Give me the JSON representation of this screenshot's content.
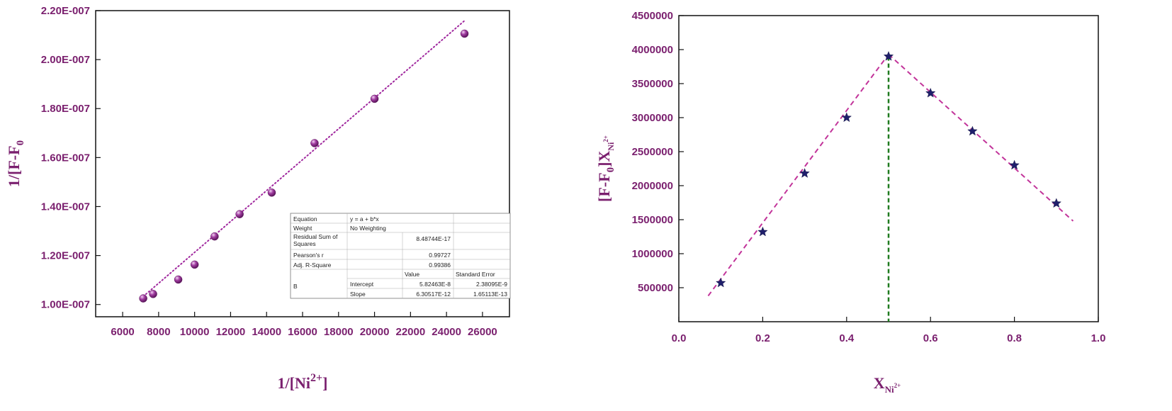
{
  "colors": {
    "text": "#7a1f6e",
    "axis": "#111111",
    "left_marker": "#8e2a8e",
    "left_fit": "#a0289e",
    "right_marker": "#1f1f6b",
    "right_fit": "#c2349a",
    "right_vline": "#1f7a1f"
  },
  "chart_data": [
    {
      "type": "scatter",
      "title": "",
      "xlabel": {
        "main": "1/[Ni",
        "sup": "2+",
        "end": "]"
      },
      "ylabel": {
        "main": "1/[F-F",
        "sub": "0"
      },
      "xlim": [
        4500,
        27500
      ],
      "ylim": [
        9.5e-08,
        2.2e-07
      ],
      "xticks": [
        6000,
        8000,
        10000,
        12000,
        14000,
        16000,
        18000,
        20000,
        22000,
        24000,
        26000
      ],
      "xtick_labels": [
        "6000",
        "8000",
        "10000",
        "12000",
        "14000",
        "16000",
        "18000",
        "20000",
        "22000",
        "24000",
        "26000"
      ],
      "yticks": [
        1e-07,
        1.2e-07,
        1.4e-07,
        1.6e-07,
        1.8e-07,
        2e-07,
        2.2e-07
      ],
      "ytick_labels": [
        "1.00E-007",
        "1.20E-007",
        "1.40E-007",
        "1.60E-007",
        "1.80E-007",
        "2.00E-007",
        "2.20E-007"
      ],
      "grid": false,
      "marker": "sphere",
      "points": [
        {
          "x": 7143,
          "y": 1.025e-07
        },
        {
          "x": 7692,
          "y": 1.043e-07
        },
        {
          "x": 9091,
          "y": 1.102e-07
        },
        {
          "x": 10000,
          "y": 1.163e-07
        },
        {
          "x": 11111,
          "y": 1.278e-07
        },
        {
          "x": 12500,
          "y": 1.369e-07
        },
        {
          "x": 14286,
          "y": 1.457e-07
        },
        {
          "x": 16667,
          "y": 1.659e-07
        },
        {
          "x": 20000,
          "y": 1.84e-07
        },
        {
          "x": 25000,
          "y": 2.106e-07
        }
      ],
      "fit": {
        "style": "dotted",
        "intercept": 5.82463e-08,
        "slope": 6.30517e-12,
        "x_range": [
          7143,
          25000
        ]
      },
      "fit_table": {
        "rows": [
          [
            "Equation",
            "y = a + b*x",
            "",
            ""
          ],
          [
            "Weight",
            "No Weighting",
            "",
            ""
          ],
          [
            "Residual Sum of Squares",
            "",
            "8.48744E-17",
            ""
          ],
          [
            "Pearson's r",
            "",
            "0.99727",
            ""
          ],
          [
            "Adj. R-Square",
            "",
            "0.99386",
            ""
          ],
          [
            "",
            "",
            "Value",
            "Standard Error"
          ],
          [
            "B",
            "Intercept",
            "5.82463E-8",
            "2.38095E-9"
          ],
          [
            "",
            "Slope",
            "6.30517E-12",
            "1.65113E-13"
          ]
        ]
      }
    },
    {
      "type": "scatter",
      "title": "",
      "xlabel": {
        "main": "X",
        "sub": "Ni",
        "subsup": "2+"
      },
      "ylabel": {
        "main": "[F-F",
        "sub": "0",
        "mid": "]X",
        "sub2": "Ni",
        "sub2sup": "2+"
      },
      "xlim": [
        0.0,
        1.0
      ],
      "ylim": [
        0,
        4500000
      ],
      "xticks": [
        0.0,
        0.2,
        0.4,
        0.6,
        0.8,
        1.0
      ],
      "xtick_labels": [
        "0.0",
        "0.2",
        "0.4",
        "0.6",
        "0.8",
        "1.0"
      ],
      "yticks": [
        500000,
        1000000,
        1500000,
        2000000,
        2500000,
        3000000,
        3500000,
        4000000,
        4500000
      ],
      "ytick_labels": [
        "500000",
        "1000000",
        "1500000",
        "2000000",
        "2500000",
        "3000000",
        "3500000",
        "4000000",
        "4500000"
      ],
      "grid": false,
      "marker": "star",
      "points": [
        {
          "x": 0.1,
          "y": 570000
        },
        {
          "x": 0.2,
          "y": 1320000
        },
        {
          "x": 0.3,
          "y": 2180000
        },
        {
          "x": 0.4,
          "y": 3000000
        },
        {
          "x": 0.5,
          "y": 3900000
        },
        {
          "x": 0.6,
          "y": 3360000
        },
        {
          "x": 0.7,
          "y": 2800000
        },
        {
          "x": 0.8,
          "y": 2300000
        },
        {
          "x": 0.9,
          "y": 1740000
        }
      ],
      "fit_lines": [
        {
          "style": "dashed",
          "from": {
            "x": 0.07,
            "y": 380000
          },
          "to": {
            "x": 0.5,
            "y": 3930000
          }
        },
        {
          "style": "dashed",
          "from": {
            "x": 0.5,
            "y": 3930000
          },
          "to": {
            "x": 0.94,
            "y": 1480000
          }
        }
      ],
      "vline": {
        "style": "dashed",
        "x": 0.5,
        "y_range": [
          0,
          3900000
        ]
      }
    }
  ]
}
